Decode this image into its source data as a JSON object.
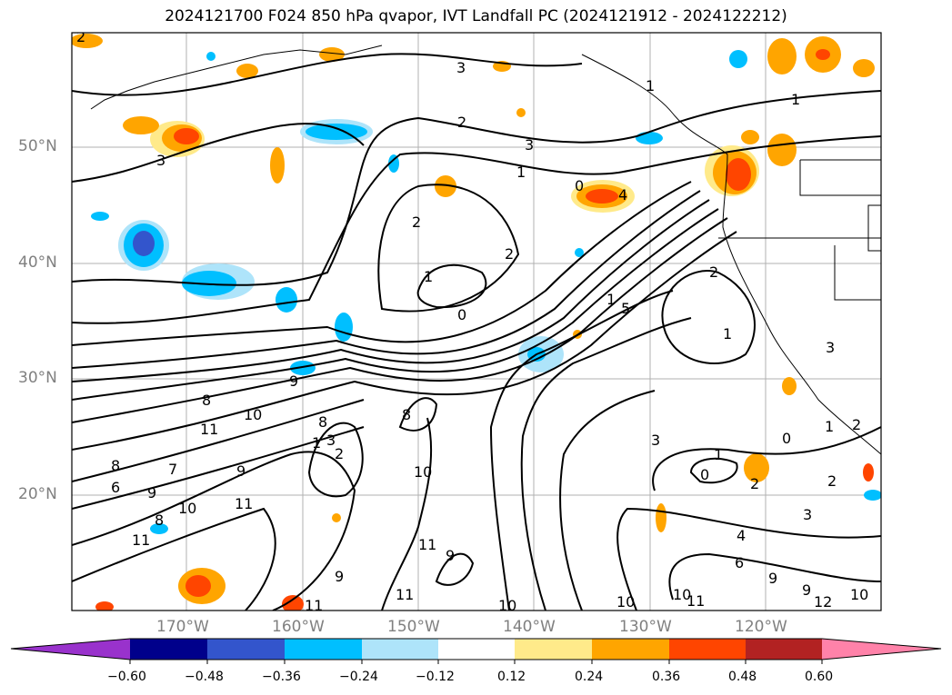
{
  "title": "2024121700 F024 850 hPa qvapor, IVT Landfall PC (2024121912 - 2024122212)",
  "lat_labels": [
    "50°N",
    "40°N",
    "30°N",
    "20°N"
  ],
  "lon_labels": [
    "170°W",
    "160°W",
    "150°W",
    "140°W",
    "130°W",
    "120°W"
  ],
  "colorbar": {
    "colors": [
      "#9932cc",
      "#00008b",
      "#3355cc",
      "#00bfff",
      "#aee4fa",
      "#ffffff",
      "#ffea8a",
      "#ffa500",
      "#ff4500",
      "#b22222",
      "#ff82a9"
    ],
    "tick_labels": [
      "−0.60",
      "−0.48",
      "−0.36",
      "−0.24",
      "−0.12",
      "0.12",
      "0.24",
      "0.36",
      "0.48",
      "0.60"
    ]
  },
  "contour_labels": [
    "2",
    "3",
    "2",
    "1",
    "3",
    "1",
    "0",
    "4",
    "2",
    "2",
    "1",
    "0",
    "1",
    "5",
    "1",
    "2",
    "3",
    "3",
    "9",
    "8",
    "11",
    "10",
    "8",
    "7",
    "6",
    "9",
    "8",
    "11",
    "9",
    "10",
    "11",
    "10",
    "11",
    "9",
    "9",
    "8",
    "10",
    "11",
    "9",
    "10",
    "10",
    "11",
    "10",
    "12",
    "9",
    "6",
    "4",
    "3",
    "2",
    "1",
    "0",
    "2",
    "0",
    "1",
    "2",
    "3",
    "11",
    "8",
    "3",
    "2",
    "1",
    "1"
  ]
}
